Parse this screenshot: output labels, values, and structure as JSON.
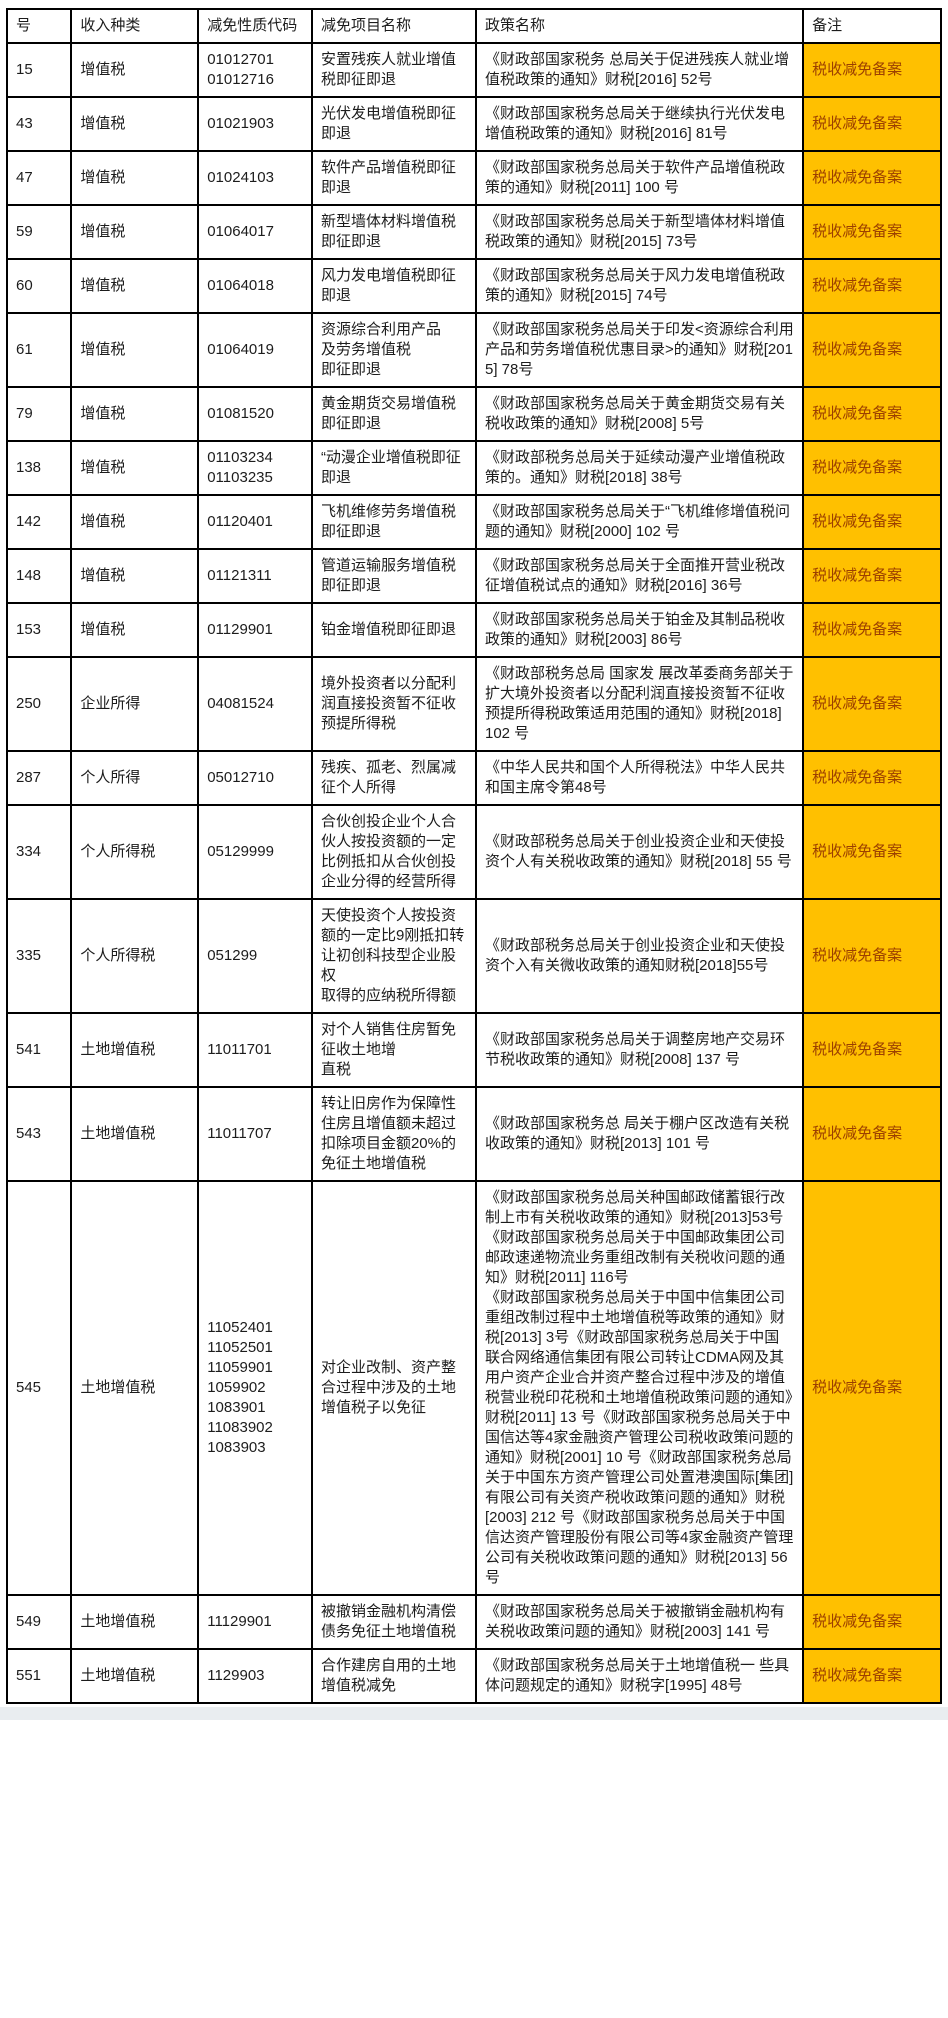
{
  "colors": {
    "highlight_bg": "#FFC000",
    "highlight_text": "#9C4000",
    "grid_border": "#000000",
    "bottom_strip": "#E9EDF0"
  },
  "table": {
    "headers": [
      "号",
      "收入种类",
      "减免性质代码",
      "减免项目名称",
      "政策名称",
      "备注"
    ],
    "rows": [
      {
        "no": "15",
        "type": "增值税",
        "codes": "01012701\n01012716",
        "project": "安置残疾人就业增值税即征即退",
        "policy": "《财政部国家税务 总局关于促进残疾人就业增值税政策的通知》财税[2016] 52号",
        "remark": "税收减免备案"
      },
      {
        "no": "43",
        "type": "增值税",
        "codes": "01021903",
        "project": "光伏发电增值税即征即退",
        "policy": "《财政部国家税务总局关于继续执行光伏发电增值税政策的通知》财税[2016] 81号",
        "remark": "税收减免备案"
      },
      {
        "no": "47",
        "type": "增值税",
        "codes": "01024103",
        "project": "软件产品增值税即征即退",
        "policy": "《财政部国家税务总局关于软件产品增值税政策的通知》财税[2011] 100 号",
        "remark": "税收减免备案"
      },
      {
        "no": "59",
        "type": "增值税",
        "codes": "01064017",
        "project": "新型墙体材料增值税即征即退",
        "policy": "《财政部国家税务总局关于新型墙体材料增值税政策的通知》财税[2015] 73号",
        "remark": "税收减免备案"
      },
      {
        "no": "60",
        "type": "增值税",
        "codes": "01064018",
        "project": "风力发电增值税即征即退",
        "policy": "《财政部国家税务总局关于风力发电增值税政策的通知》财税[2015] 74号",
        "remark": "税收减免备案"
      },
      {
        "no": "61",
        "type": "增值税",
        "codes": "01064019",
        "project": "资源综合利用产品\n及劳务增值税\n即征即退",
        "policy": "《财政部国家税务总局关于印发<资源综合利用产品和劳务增值税优惠目录>的通知》财税[2015] 78号",
        "remark": "税收减免备案"
      },
      {
        "no": "79",
        "type": "增值税",
        "codes": "01081520",
        "project": "黄金期货交易增值税即征即退",
        "policy": "《财政部国家税务总局关于黄金期货交易有关税收政策的通知》财税[2008] 5号",
        "remark": "税收减免备案"
      },
      {
        "no": "138",
        "type": "增值税",
        "codes": "01103234\n01103235",
        "project": "“动漫企业增值税即征即退",
        "policy": "《财政部税务总局关于延续动漫产业增值税政策的。通知》财税[2018] 38号",
        "remark": "税收减免备案"
      },
      {
        "no": "142",
        "type": "增值税",
        "codes": "01120401",
        "project": "飞机维修劳务增值税即征即退",
        "policy": "《财政部国家税务总局关于“飞机维修增值税问题的通知》财税[2000] 102 号",
        "remark": "税收减免备案"
      },
      {
        "no": "148",
        "type": "增值税",
        "codes": "01121311",
        "project": "管道运输服务增值税即征即退",
        "policy": "《财政部国家税务总局关于全面推开营业税改征增值税试点的通知》财税[2016] 36号",
        "remark": "税收减免备案"
      },
      {
        "no": "153",
        "type": "增值税",
        "codes": "01129901",
        "project": "铂金增值税即征即退",
        "policy": "《财政部国家税务总局关于铂金及其制品税收政策的通知》财税[2003] 86号",
        "remark": "税收减免备案"
      },
      {
        "no": "250",
        "type": "企业所得",
        "codes": "04081524",
        "project": "境外投资者以分配利润直接投资暂不征收预提所得税",
        "policy": "《财政部税务总局 国家发 展改革委商务部关于扩大境外投资者以分配利润直接投资暂不征收预提所得税政策适用范围的通知》财税[2018] 102 号",
        "remark": "税收减免备案"
      },
      {
        "no": "287",
        "type": "个人所得",
        "codes": "05012710",
        "project": "残疾、孤老、烈属减征个人所得",
        "policy": "《中华人民共和国个人所得税法》中华人民共和国主席令第48号",
        "remark": "税收减免备案"
      },
      {
        "no": "334",
        "type": "个人所得税",
        "codes": "05129999",
        "project": "合伙创投企业个人合伙人按投资额的一定比例抵扣从合伙创投企业分得的经营所得",
        "policy": "《财政部税务总局关于创业投资企业和天使投资个人有关税收政策的通知》财税[2018] 55 号",
        "remark": "税收减免备案"
      },
      {
        "no": "335",
        "type": "个人所得税",
        "codes": "051299",
        "project": "天使投资个人按投资额的一定比9刚抵扣转让初创科技型企业股权\n取得的应纳税所得额",
        "policy": "《财政部税务总局关于创业投资企业和天使投资个入有关微收政策的通知财税[2018]55号",
        "remark": "税收减免备案"
      },
      {
        "no": "541",
        "type": "土地增值税",
        "codes": "11011701",
        "project": "对个人销售住房暂免征收土地增\n直税",
        "policy": "《财政部国家税务总局关于调整房地产交易环节税收政策的通知》财税[2008] 137 号",
        "remark": "税收减免备案"
      },
      {
        "no": "543",
        "type": "土地增值税",
        "codes": "11011707",
        "project": "转让旧房作为保障性住房且增值额未超过扣除项目金额20%的免征土地增值税",
        "policy": "《财政部国家税务总 局关于棚户区改造有关税收政策的通知》财税[2013] 101 号",
        "remark": "税收减免备案"
      },
      {
        "no": "545",
        "type": "土地增值税",
        "codes": "11052401\n11052501\n11059901\n1059902\n1083901\n11083902\n1083903",
        "project": "对企业改制、资产整合过程中涉及的土地增值税子以免征",
        "policy": "《财政部国家税务总局关种国邮政储蓄银行改制上市有关税收政策的通知》财税[2013]53号\n《财政部国家税务总局关于中国邮政集团公司邮政速递物流业务重组改制有关税收问题的通知》财税[2011] 116号\n《财政部国家税务总局关于中国中信集团公司重组改制过程中土地增值税等政策的通知》财税[2013] 3号《财政部国家税务总局关于中国联合网络通信集团有限公司转让CDMA网及其用户资产企业合并资产整合过程中涉及的增值税营业税印花税和土地增值税政策问题的通知》财税[2011] 13 号《财政部国家税务总局关于中国信达等4家金融资产管理公司税收政策问题的通知》财税[2001] 10 号《财政部国家税务总局关于中国东方资产管理公司处置港澳国际[集团]有限公司有关资产税收政策问题的通知》财税[2003] 212 号《财政部国家税务总局关于中国信达资产管理股份有限公司等4家金融资产管理公司有关税收政策问题的通知》财税[2013] 56号",
        "remark": "税收减免备案"
      },
      {
        "no": "549",
        "type": "土地增值税",
        "codes": "11129901",
        "project": "被撤销金融机构清偿债务免征土地增值税",
        "policy": "《财政部国家税务总局关于被撤销金融机构有关税收政策问题的通知》财税[2003] 141 号",
        "remark": "税收减免备案"
      },
      {
        "no": "551",
        "type": "土地增值税",
        "codes": "1129903",
        "project": "合作建房自用的土地增值税减免",
        "policy": "《财政部国家税务总局关于土地增值税一 些具体问题规定的通知》财税字[1995] 48号",
        "remark": "税收减免备案"
      }
    ]
  }
}
